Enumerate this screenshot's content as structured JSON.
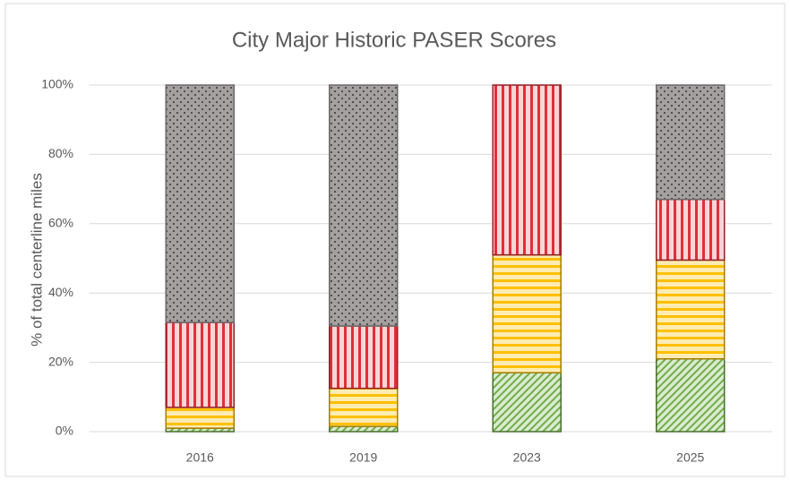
{
  "chart_data": {
    "type": "stacked_bar",
    "title": "City Major Historic PASER Scores",
    "y_label": "% of total centerline miles",
    "categories": [
      "2016",
      "2019",
      "2023",
      "2025"
    ],
    "series": [
      {
        "color": "#70ad47",
        "pattern": "diagonal",
        "values": [
          1,
          1.5,
          17,
          21
        ]
      },
      {
        "color": "#ffc000",
        "pattern": "horizontal",
        "values": [
          6,
          11,
          34,
          28.5
        ]
      },
      {
        "color": "#e0303a",
        "pattern": "vertical",
        "values": [
          24.5,
          18,
          49,
          17.5
        ]
      },
      {
        "color": "#a5a0a0",
        "pattern": "dots",
        "values": [
          68.5,
          69.5,
          0,
          33
        ]
      }
    ],
    "ylim": [
      0,
      100
    ],
    "yticks": [
      {
        "value": 0,
        "label": "0%"
      },
      {
        "value": 20,
        "label": "20%"
      },
      {
        "value": 40,
        "label": "40%"
      },
      {
        "value": 60,
        "label": "60%"
      },
      {
        "value": 80,
        "label": "80%"
      },
      {
        "value": 100,
        "label": "100%"
      }
    ],
    "grid": true
  }
}
